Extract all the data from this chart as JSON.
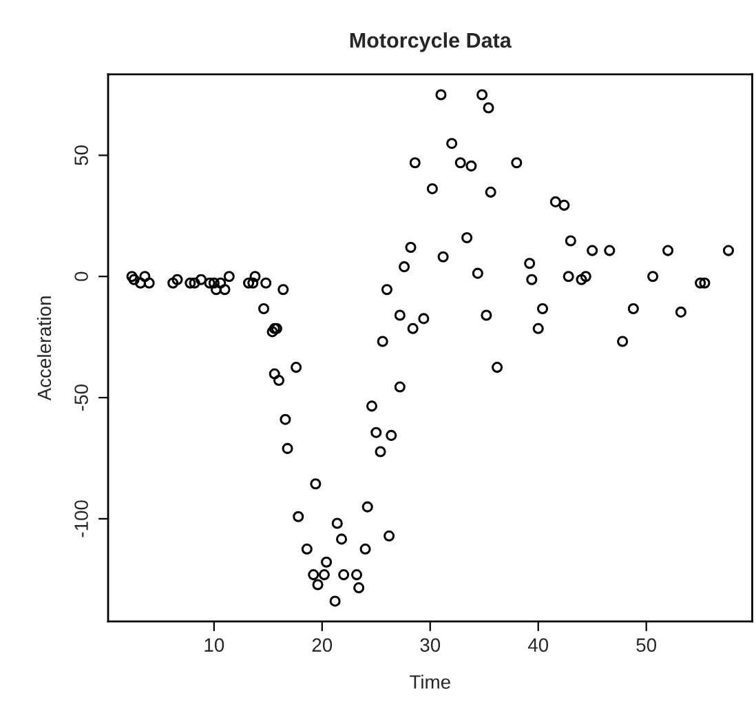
{
  "chart_data": {
    "type": "scatter",
    "title": "Motorcycle Data",
    "xlabel": "Time",
    "ylabel": "Acceleration",
    "xlim": [
      0.2,
      59.8
    ],
    "ylim": [
      -142.4,
      83.4
    ],
    "xticks": [
      10,
      20,
      30,
      40,
      50
    ],
    "yticks": [
      -100,
      -50,
      0,
      50
    ],
    "grid": false,
    "marker": "circle",
    "series": [
      {
        "color": "#000000",
        "x": [
          2.4,
          2.6,
          3.2,
          3.6,
          4.0,
          6.2,
          6.6,
          7.8,
          8.2,
          8.8,
          9.6,
          10.0,
          10.2,
          10.6,
          11.0,
          11.4,
          13.2,
          13.6,
          13.8,
          14.8,
          16.4,
          14.6,
          15.4,
          15.6,
          15.8,
          15.6,
          16.0,
          17.6,
          16.6,
          16.8,
          19.4,
          17.8,
          21.4,
          21.8,
          18.6,
          20.4,
          19.2,
          20.2,
          19.6,
          21.2,
          22.0,
          23.2,
          23.4,
          24.0,
          26.2,
          24.2,
          27.2,
          24.6,
          25.0,
          26.4,
          25.4,
          25.6,
          26.0,
          27.2,
          28.4,
          29.4,
          27.6,
          28.2,
          28.6,
          30.2,
          31.2,
          31.0,
          32.0,
          32.8,
          33.8,
          33.4,
          34.8,
          35.4,
          35.6,
          34.4,
          35.2,
          36.2,
          38.0,
          39.2,
          39.4,
          40.4,
          40.0,
          41.6,
          42.4,
          43.0,
          42.8,
          44.0,
          44.4,
          45.0,
          46.6,
          52.0,
          57.6,
          50.6,
          55.0,
          55.4,
          48.8,
          53.2,
          47.8
        ],
        "values": [
          0.0,
          -1.3,
          -2.7,
          0.0,
          -2.7,
          -2.7,
          -1.3,
          -2.7,
          -2.7,
          -1.3,
          -2.7,
          -2.7,
          -5.4,
          -2.7,
          -5.4,
          0.0,
          -2.7,
          -2.7,
          0.0,
          -2.7,
          -5.4,
          -13.3,
          -22.8,
          -21.5,
          -21.5,
          -40.2,
          -42.9,
          -37.5,
          -59.0,
          -71.0,
          -85.6,
          -99.1,
          -101.9,
          -108.4,
          -112.5,
          -117.9,
          -123.1,
          -123.1,
          -127.2,
          -134.0,
          -123.1,
          -123.1,
          -128.5,
          -112.5,
          -107.1,
          -95.1,
          -45.6,
          -53.5,
          -64.4,
          -65.6,
          -72.3,
          -26.8,
          -5.4,
          -16.0,
          -21.5,
          -17.4,
          4.0,
          12.0,
          46.9,
          36.2,
          8.1,
          75.0,
          54.9,
          46.9,
          45.6,
          16.0,
          75.0,
          69.6,
          34.8,
          1.3,
          -16.0,
          -37.5,
          46.9,
          5.4,
          -1.3,
          -13.3,
          -21.5,
          30.8,
          29.4,
          14.7,
          0.0,
          -1.3,
          0.0,
          10.7,
          10.7,
          10.7,
          10.7,
          0.0,
          -2.7,
          -2.7,
          -13.3,
          -14.7,
          -26.8
        ]
      }
    ]
  }
}
